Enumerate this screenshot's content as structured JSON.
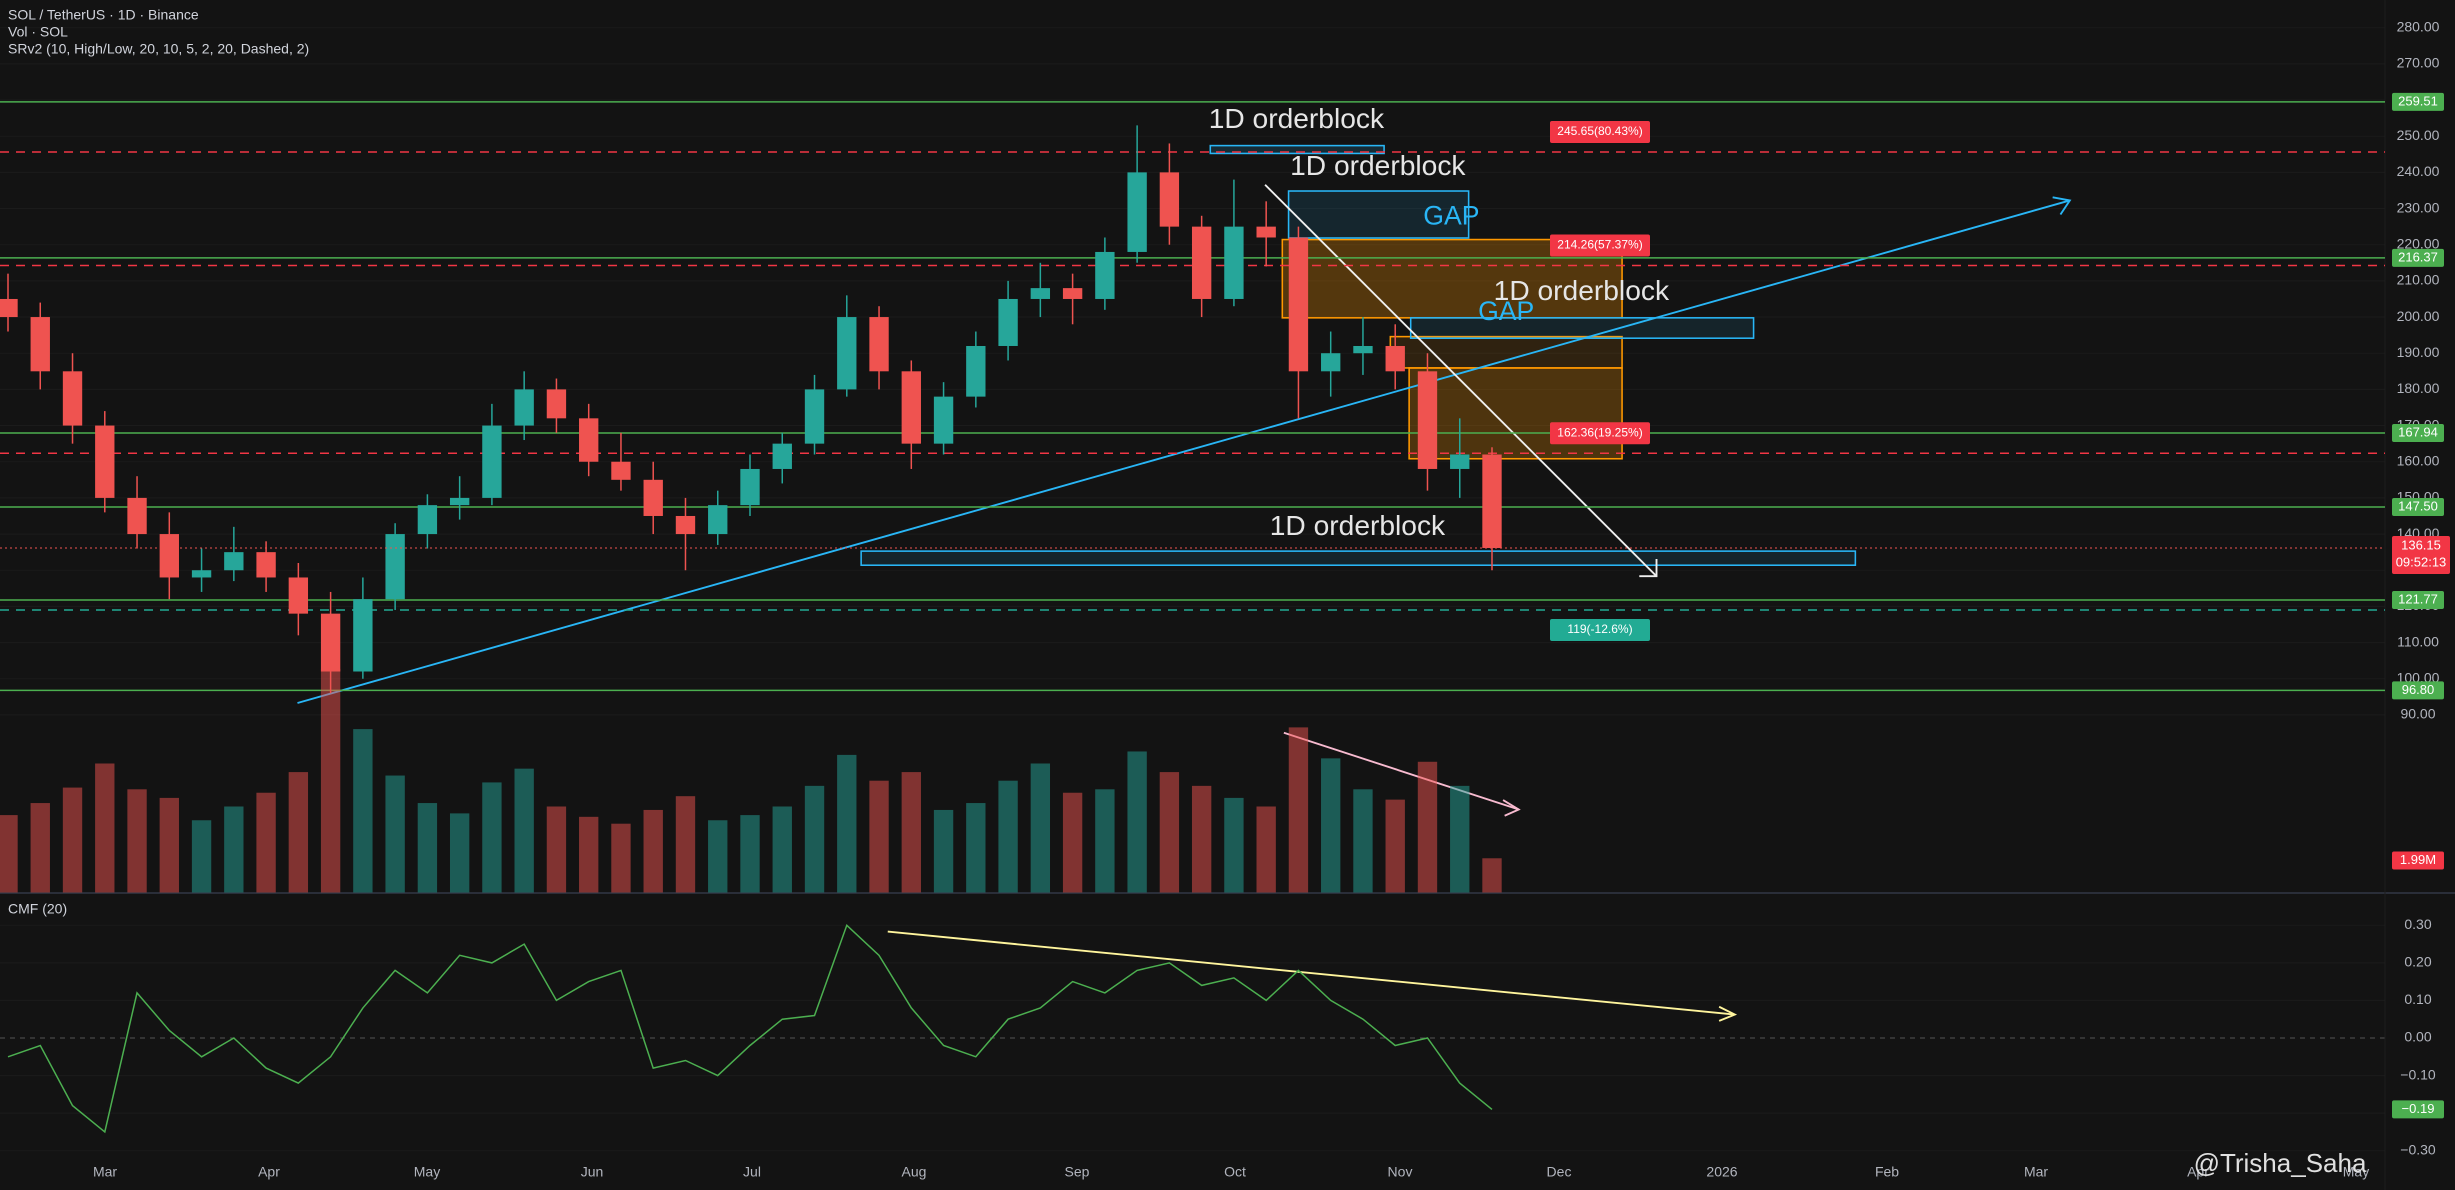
{
  "chart_data": {
    "type": "candlestick",
    "title": "SOL / TetherUS · 1D · Binance",
    "indicator_labels": [
      "Vol · SOL",
      "SRv2 (10, High/Low, 20, 10, 5, 2, 20, Dashed, 2)"
    ],
    "up_color": "#26a69a",
    "down_color": "#ef5350",
    "open": [
      205,
      200,
      185,
      170,
      150,
      140,
      128,
      130,
      135,
      128,
      118,
      102,
      122,
      140,
      148,
      150,
      170,
      180,
      172,
      160,
      155,
      145,
      140,
      148,
      158,
      165,
      180,
      200,
      185,
      165,
      178,
      192,
      205,
      208,
      205,
      218,
      240,
      225,
      205,
      225,
      222,
      185,
      190,
      192,
      185,
      158,
      162
    ],
    "high": [
      212,
      204,
      190,
      174,
      156,
      146,
      136,
      142,
      138,
      132,
      124,
      128,
      143,
      151,
      156,
      176,
      185,
      183,
      176,
      168,
      160,
      150,
      152,
      162,
      168,
      184,
      206,
      203,
      188,
      182,
      196,
      210,
      215,
      212,
      222,
      253,
      248,
      228,
      238,
      232,
      225,
      196,
      200,
      198,
      190,
      172,
      164
    ],
    "low": [
      196,
      180,
      165,
      146,
      136,
      122,
      124,
      127,
      124,
      112,
      96,
      100,
      119,
      136,
      144,
      148,
      166,
      168,
      156,
      152,
      140,
      130,
      137,
      145,
      154,
      162,
      178,
      180,
      158,
      162,
      175,
      188,
      200,
      198,
      202,
      215,
      220,
      200,
      203,
      214,
      172,
      178,
      184,
      180,
      152,
      150,
      130
    ],
    "close": [
      200,
      185,
      170,
      150,
      140,
      128,
      130,
      135,
      128,
      118,
      102,
      122,
      140,
      148,
      150,
      170,
      180,
      172,
      160,
      155,
      145,
      140,
      148,
      158,
      165,
      180,
      200,
      185,
      165,
      178,
      192,
      205,
      208,
      205,
      218,
      240,
      225,
      205,
      225,
      222,
      185,
      190,
      192,
      185,
      158,
      162,
      136.15
    ],
    "countdown": "09:52:13",
    "volume": [
      4.5,
      5.2,
      6.1,
      7.5,
      6.0,
      5.5,
      4.2,
      5.0,
      5.8,
      7.0,
      13.0,
      9.5,
      6.8,
      5.2,
      4.6,
      6.4,
      7.2,
      5.0,
      4.4,
      4.0,
      4.8,
      5.6,
      4.2,
      4.5,
      5.0,
      6.2,
      8.0,
      6.5,
      7.0,
      4.8,
      5.2,
      6.5,
      7.5,
      5.8,
      6.0,
      8.2,
      7.0,
      6.2,
      5.5,
      5.0,
      9.6,
      7.8,
      6.0,
      5.4,
      7.6,
      6.2,
      1.99
    ],
    "volume_value_label": "1.99M",
    "ylim": [
      40.9,
      287.66
    ],
    "yticks": [
      {
        "value": 90,
        "label": "90.00"
      },
      {
        "value": 100,
        "label": "100.00"
      },
      {
        "value": 110,
        "label": "110.00"
      },
      {
        "value": 120,
        "label": "120.00"
      },
      {
        "value": 130,
        "label": "130.00"
      },
      {
        "value": 140,
        "label": "140.00"
      },
      {
        "value": 150,
        "label": "150.00"
      },
      {
        "value": 160,
        "label": "160.00"
      },
      {
        "value": 170,
        "label": "170.00"
      },
      {
        "value": 180,
        "label": "180.00"
      },
      {
        "value": 190,
        "label": "190.00"
      },
      {
        "value": 200,
        "label": "200.00"
      },
      {
        "value": 210,
        "label": "210.00"
      },
      {
        "value": 220,
        "label": "220.00"
      },
      {
        "value": 230,
        "label": "230.00"
      },
      {
        "value": 240,
        "label": "240.00"
      },
      {
        "value": 250,
        "label": "250.00"
      },
      {
        "value": 260,
        "label": "260.00"
      },
      {
        "value": 270,
        "label": "270.00"
      },
      {
        "value": 280,
        "label": "280.00"
      }
    ],
    "levels": [
      {
        "value": 259.51,
        "label": "259.51"
      },
      {
        "value": 216.37,
        "label": "216.37"
      },
      {
        "value": 167.94,
        "label": "167.94"
      },
      {
        "value": 147.5,
        "label": "147.50"
      },
      {
        "value": 121.77,
        "label": "121.77"
      },
      {
        "value": 96.8,
        "label": "96.80"
      }
    ],
    "targets": [
      {
        "value": 245.65,
        "label": "245.65(80.43%)",
        "color": "#f23645"
      },
      {
        "value": 214.26,
        "label": "214.26(57.37%)",
        "color": "#f23645"
      },
      {
        "value": 162.36,
        "label": "162.36(19.25%)",
        "color": "#f23645"
      },
      {
        "value": 119,
        "label": "119(-12.6%)",
        "color": "#22ab94"
      }
    ],
    "annotations": [
      "1D orderblock",
      "1D orderblock",
      "1D orderblock",
      "1D orderblock",
      "GAP",
      "GAP"
    ],
    "cmf": {
      "title": "CMF (20)",
      "values": [
        -0.05,
        -0.02,
        -0.18,
        -0.25,
        0.12,
        0.02,
        -0.05,
        0.0,
        -0.08,
        -0.12,
        -0.05,
        0.08,
        0.18,
        0.12,
        0.22,
        0.2,
        0.25,
        0.1,
        0.15,
        0.18,
        -0.08,
        -0.06,
        -0.1,
        -0.02,
        0.05,
        0.06,
        0.3,
        0.22,
        0.08,
        -0.02,
        -0.05,
        0.05,
        0.08,
        0.15,
        0.12,
        0.18,
        0.2,
        0.14,
        0.16,
        0.1,
        0.18,
        0.1,
        0.05,
        -0.02,
        0.0,
        -0.12,
        -0.19
      ],
      "last_value_label": "−0.19",
      "color": "#4caf50",
      "ylim": [
        -0.321,
        0.379
      ],
      "yticks": [
        {
          "value": 0.3,
          "label": "0.30"
        },
        {
          "value": 0.2,
          "label": "0.20"
        },
        {
          "value": 0.1,
          "label": "0.10"
        },
        {
          "value": 0,
          "label": "0.00"
        },
        {
          "value": -0.1,
          "label": "−0.10"
        },
        {
          "value": -0.2,
          "label": "−0.20"
        },
        {
          "value": -0.3,
          "label": "−0.30"
        }
      ]
    },
    "time_labels": [
      "Mar",
      "Apr",
      "May",
      "Jun",
      "Jul",
      "Aug",
      "Sep",
      "Oct",
      "Nov",
      "Dec",
      "2026",
      "Feb",
      "Mar",
      "Apr",
      "May"
    ],
    "watermark": "@Trisha_Saha"
  }
}
